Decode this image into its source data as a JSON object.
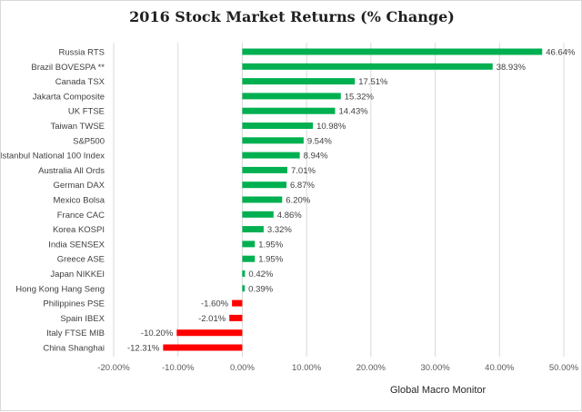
{
  "chart_data": {
    "type": "bar",
    "orientation": "horizontal",
    "title": "2016 Stock Market Returns  (% Change)",
    "source": "Global Macro Monitor",
    "categories": [
      "Russia RTS",
      "Brazil BOVESPA **",
      "Canada TSX",
      "Jakarta Composite",
      "UK FTSE",
      "Taiwan  TWSE",
      "S&P500",
      "Istanbul National 100 Index",
      "Australia All Ords",
      "German DAX",
      "Mexico Bolsa",
      "France CAC",
      "Korea KOSPI",
      "India SENSEX",
      "Greece ASE",
      "Japan NIKKEI",
      "Hong Kong Hang Seng",
      "Philippines PSE",
      "Spain IBEX",
      "Italy FTSE MIB",
      "China Shanghai"
    ],
    "values": [
      46.64,
      38.93,
      17.51,
      15.32,
      14.43,
      10.98,
      9.54,
      8.94,
      7.01,
      6.87,
      6.2,
      4.86,
      3.32,
      1.95,
      1.95,
      0.42,
      0.39,
      -1.6,
      -2.01,
      -10.2,
      -12.31
    ],
    "value_labels": [
      "46.64%",
      "38.93%",
      "17.51%",
      "15.32%",
      "14.43%",
      "10.98%",
      "9.54%",
      "8.94%",
      "7.01%",
      "6.87%",
      "6.20%",
      "4.86%",
      "3.32%",
      "1.95%",
      "1.95%",
      "0.42%",
      "0.39%",
      "-1.60%",
      "-2.01%",
      "-10.20%",
      "-12.31%"
    ],
    "xlim": [
      -20,
      50
    ],
    "xticks": [
      -20,
      -10,
      0,
      10,
      20,
      30,
      40,
      50
    ],
    "xtick_labels": [
      "-20.00%",
      "-10.00%",
      "0.00%",
      "10.00%",
      "20.00%",
      "30.00%",
      "40.00%",
      "50.00%"
    ],
    "grid": true,
    "legend": "none",
    "colors": {
      "positive": "#00b050",
      "negative": "#ff0000"
    }
  }
}
